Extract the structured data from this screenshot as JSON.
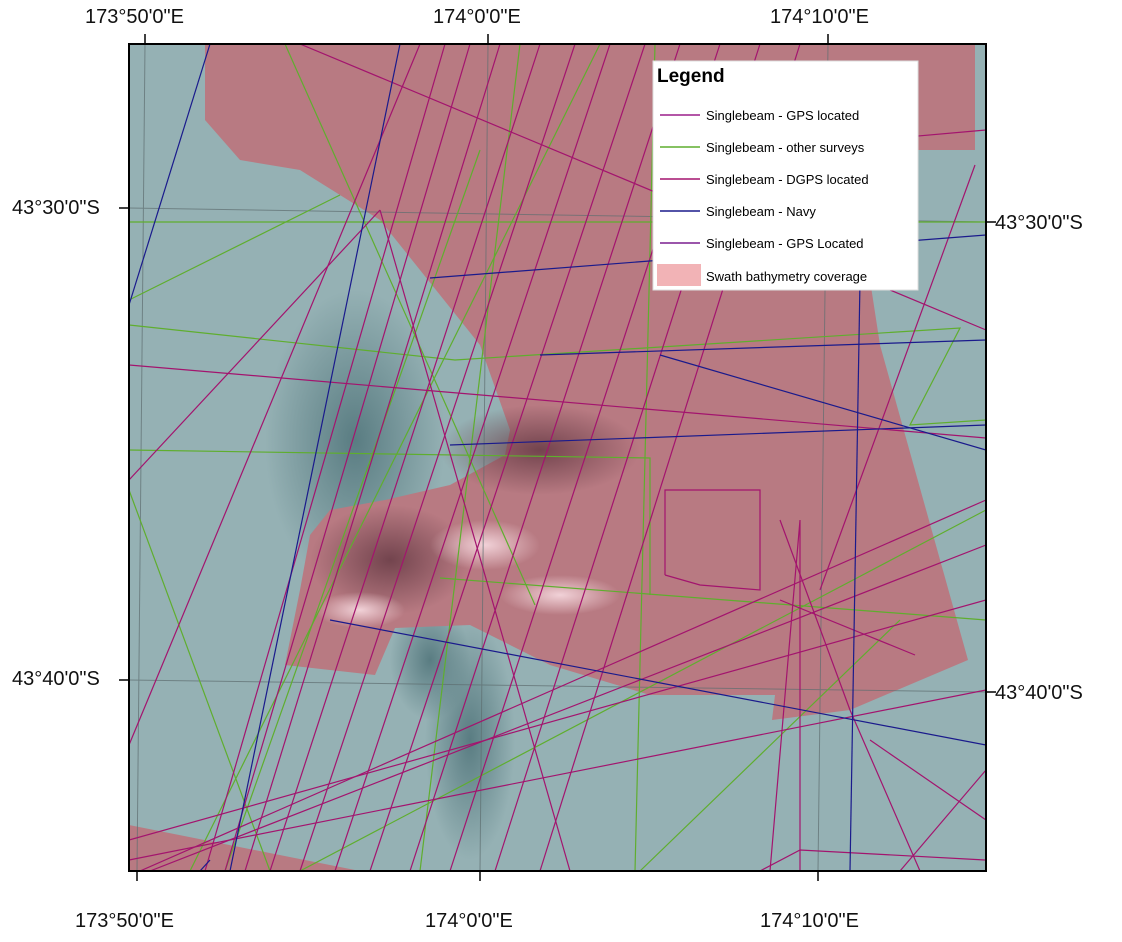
{
  "map": {
    "top_labels": [
      "173°50'0\"E",
      "174°0'0\"E",
      "174°10'0\"E"
    ],
    "bottom_labels": [
      "173°50'0\"E",
      "174°0'0\"E",
      "174°10'0\"E"
    ],
    "left_labels": [
      "43°30'0\"S",
      "43°40'0\"S"
    ],
    "right_labels": [
      "43°30'0\"S",
      "43°40'0\"S"
    ]
  },
  "legend": {
    "title": "Legend",
    "items": [
      {
        "label": "Singlebeam - GPS located",
        "color": "#9b1f8a",
        "kind": "line"
      },
      {
        "label": "Singlebeam - other surveys",
        "color": "#5fae2e",
        "kind": "line"
      },
      {
        "label": "Singlebeam - DGPS located",
        "color": "#a3146e",
        "kind": "line"
      },
      {
        "label": "Singlebeam - Navy",
        "color": "#1a1a8c",
        "kind": "line"
      },
      {
        "label": "Singlebeam - GPS Located",
        "color": "#7a1f8f",
        "kind": "line"
      },
      {
        "label": "Swath bathymetry coverage",
        "color": "#f2b3b6",
        "kind": "patch"
      }
    ]
  },
  "colors": {
    "sea": "#95b1b4",
    "swath": "#b87a82",
    "frame": "#000000"
  }
}
